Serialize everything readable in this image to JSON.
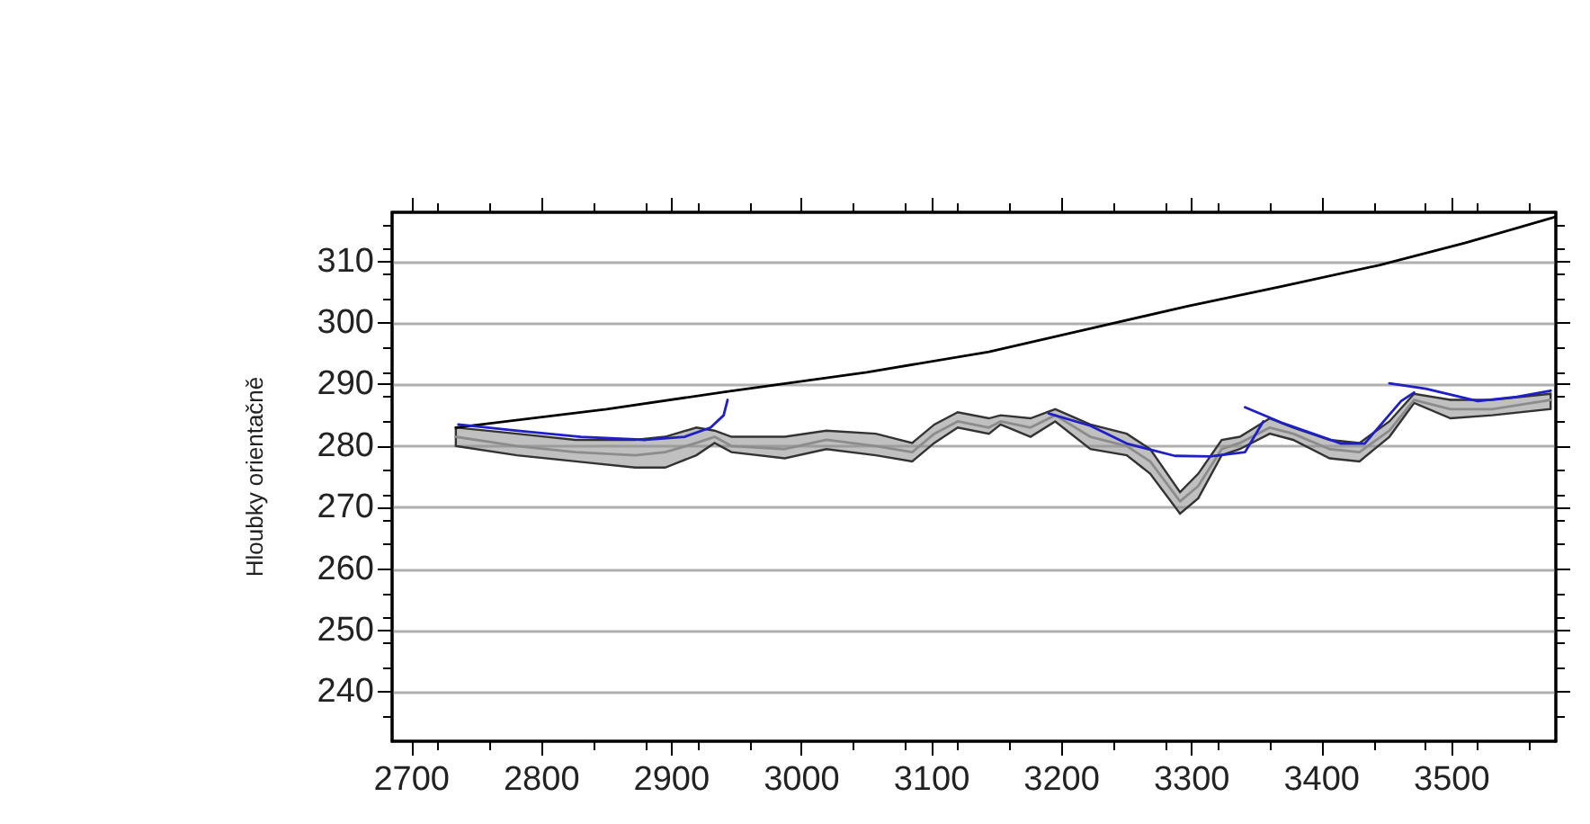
{
  "chart_data": {
    "type": "line",
    "ylabel": "Hloubky orientačně",
    "xlim": [
      2685,
      3580
    ],
    "ylim": [
      232,
      318
    ],
    "xticks": [
      2700,
      2800,
      2900,
      3000,
      3100,
      3200,
      3300,
      3400,
      3500
    ],
    "yticks": [
      240,
      250,
      260,
      270,
      280,
      290,
      300,
      310
    ],
    "grid": "y",
    "marker": "none",
    "series": [
      {
        "color": "#000000",
        "x": [
          2734,
          2850,
          2941,
          3050,
          3144,
          3220,
          3296,
          3370,
          3444,
          3510,
          3579
        ],
        "values": [
          283,
          286,
          288.8,
          292,
          295.3,
          299,
          302.7,
          306,
          309.4,
          313,
          317.2
        ]
      },
      {
        "color": "#8c8c8c",
        "x": [
          2734,
          2781,
          2826,
          2872,
          2895,
          2919,
          2933,
          2946,
          2987,
          3019,
          3057,
          3085,
          3102,
          3120,
          3144,
          3153,
          3176,
          3195,
          3222,
          3250,
          3268,
          3291,
          3305,
          3323,
          3337,
          3360,
          3378,
          3406,
          3429,
          3452,
          3471,
          3499,
          3531,
          3576
        ],
        "values": [
          281.5,
          280,
          279,
          278.5,
          279,
          280.5,
          281.5,
          280,
          279.5,
          281,
          280,
          279,
          282,
          284,
          283,
          284,
          283,
          285,
          281.5,
          280,
          277.5,
          271,
          273.5,
          279.5,
          280.5,
          283,
          282,
          279.5,
          279,
          282.5,
          287.5,
          286,
          286,
          287.5
        ],
        "lower": [
          280,
          278.5,
          277.5,
          276.5,
          276.5,
          278.5,
          280.5,
          279,
          278,
          279.5,
          278.5,
          277.5,
          280.5,
          283,
          282,
          283.5,
          281.5,
          284,
          279.5,
          278.5,
          275.5,
          269,
          271.5,
          278.5,
          279.5,
          282,
          281,
          278,
          277.5,
          281.5,
          287,
          284.5,
          285,
          286
        ],
        "upper": [
          283,
          282,
          281,
          281,
          281.5,
          283,
          282.5,
          281.5,
          281.5,
          282.5,
          282,
          280.5,
          283.5,
          285.5,
          284.5,
          285,
          284.5,
          286,
          283.5,
          282,
          279.5,
          272.5,
          275.5,
          281,
          281.5,
          284.5,
          283,
          281,
          280.5,
          284,
          288.5,
          287.5,
          287.5,
          288.5
        ]
      },
      {
        "color": "#1f1fc8",
        "x": [
          2736,
          2780,
          2830,
          2880,
          2910,
          2930,
          2940,
          2943,
          3100,
          3190,
          3222,
          3250,
          3287,
          3314,
          3341,
          3355,
          3350,
          3341,
          3369,
          3415,
          3433,
          3461,
          3471,
          3462,
          3452,
          3480,
          3520,
          3550,
          3576
        ],
        "values": [
          283.5,
          282.5,
          281.5,
          281,
          281.5,
          283,
          285,
          287.5,
          null,
          285.3,
          283.3,
          280.4,
          278.4,
          278.3,
          279,
          284,
          null,
          286.3,
          283.8,
          280.4,
          280.4,
          287.3,
          288.7,
          null,
          290.2,
          289.3,
          287.3,
          288,
          289
        ]
      }
    ]
  }
}
